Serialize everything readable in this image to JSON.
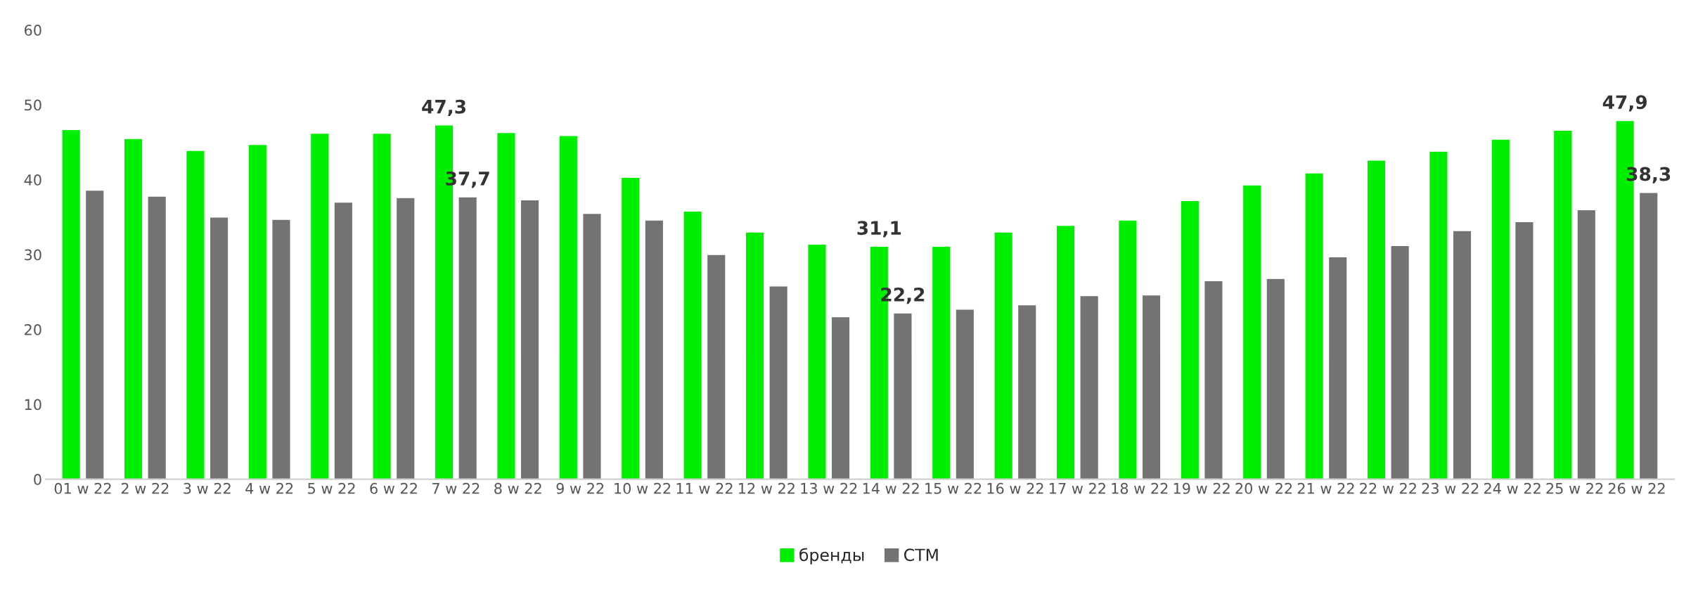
{
  "chart_data": {
    "type": "bar",
    "categories": [
      "01 w 22",
      "2 w 22",
      "3 w 22",
      "4 w 22",
      "5 w 22",
      "6 w 22",
      "7 w 22",
      "8 w 22",
      "9 w 22",
      "10 w 22",
      "11 w 22",
      "12 w 22",
      "13 w 22",
      "14 w 22",
      "15 w 22",
      "16 w 22",
      "17 w 22",
      "18 w 22",
      "19 w 22",
      "20 w 22",
      "21 w 22",
      "22 w 22",
      "23 w 22",
      "24 w 22",
      "25 w 22",
      "26 w 22"
    ],
    "series": [
      {
        "name": "бренды",
        "color": "#00ee00",
        "values": [
          46.7,
          45.5,
          43.9,
          44.7,
          46.2,
          46.2,
          47.3,
          46.3,
          45.9,
          40.3,
          35.8,
          33.0,
          31.4,
          31.1,
          31.1,
          33.0,
          33.9,
          34.6,
          37.2,
          39.3,
          40.9,
          42.6,
          43.8,
          45.4,
          46.6,
          47.9
        ],
        "value_labels": [
          null,
          null,
          null,
          null,
          null,
          null,
          "47,3",
          null,
          null,
          null,
          null,
          null,
          null,
          "31,1",
          null,
          null,
          null,
          null,
          null,
          null,
          null,
          null,
          null,
          null,
          null,
          "47,9"
        ]
      },
      {
        "name": "СТМ",
        "color": "#737373",
        "values": [
          38.6,
          37.8,
          35.0,
          34.7,
          37.0,
          37.6,
          37.7,
          37.3,
          35.5,
          34.6,
          30.0,
          25.8,
          21.7,
          22.2,
          22.7,
          23.3,
          24.5,
          24.6,
          26.5,
          26.8,
          29.7,
          31.2,
          33.2,
          34.4,
          36.0,
          38.3
        ],
        "value_labels": [
          null,
          null,
          null,
          null,
          null,
          null,
          "37,7",
          null,
          null,
          null,
          null,
          null,
          null,
          "22,2",
          null,
          null,
          null,
          null,
          null,
          null,
          null,
          null,
          null,
          null,
          null,
          "38,3"
        ]
      }
    ],
    "ylim": [
      0,
      60
    ],
    "yticks": [
      0,
      10,
      20,
      30,
      40,
      50,
      60
    ],
    "grid": false,
    "legend": "bottom"
  }
}
